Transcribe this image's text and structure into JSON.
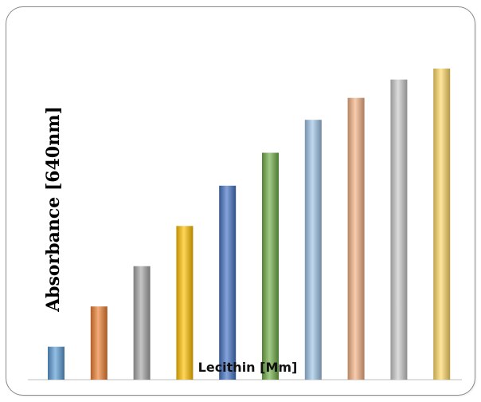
{
  "chart_data": {
    "type": "bar",
    "xlabel": "Lecithin [Mm]",
    "ylabel": "Absorbance  [640nm]",
    "values": [
      0.09,
      0.2,
      0.31,
      0.42,
      0.53,
      0.62,
      0.71,
      0.77,
      0.82,
      0.85
    ],
    "ylim": [
      0,
      0.9
    ],
    "grid": false,
    "legend": "none",
    "colors": [
      "#5b9bd5",
      "#ed7d31",
      "#a5a5a5",
      "#ffc000",
      "#4472c4",
      "#70ad47",
      "#9dc3e6",
      "#f4b183",
      "#c9c9c9",
      "#ffd966"
    ]
  }
}
